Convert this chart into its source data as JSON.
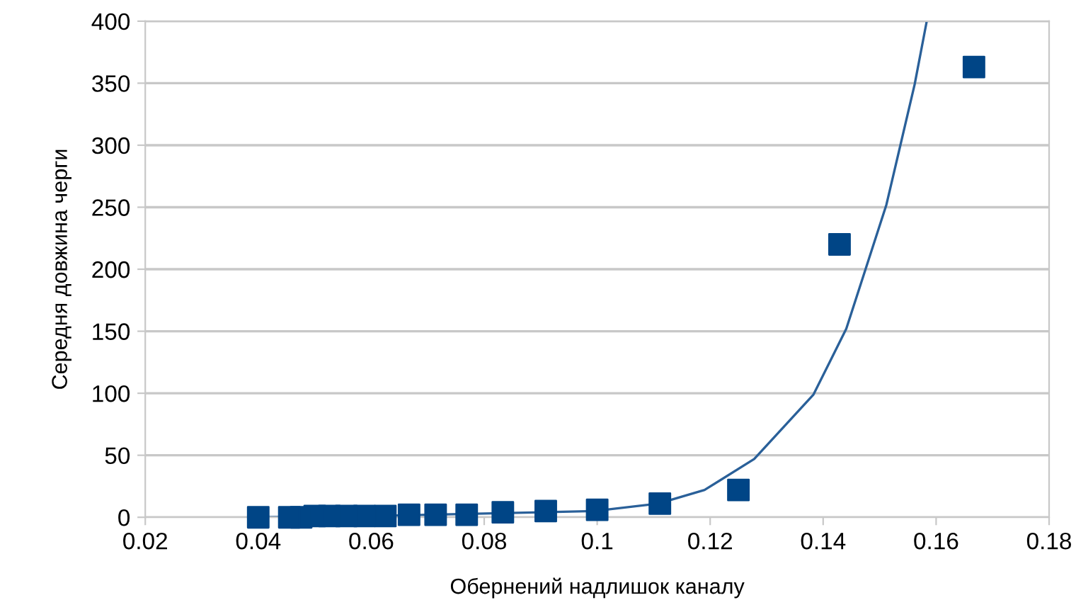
{
  "chart_data": {
    "type": "scatter",
    "xlabel": "Обернений надлишок каналу",
    "ylabel": "Середня довжина черги",
    "xlim": [
      0.02,
      0.18
    ],
    "xticks": [
      0.02,
      0.04,
      0.06,
      0.08,
      0.1,
      0.12,
      0.14,
      0.16,
      0.18
    ],
    "ylim": [
      0,
      400
    ],
    "yticks": [
      0,
      50,
      100,
      150,
      200,
      250,
      300,
      350,
      400
    ],
    "grid": "y",
    "series": [
      {
        "marker": "square",
        "color": "#004586",
        "x": [
          0.1667,
          0.1429,
          0.125,
          0.1111,
          0.1,
          0.0909,
          0.0833,
          0.0769,
          0.0714,
          0.0667,
          0.0625,
          0.0588,
          0.0556,
          0.0526,
          0.05,
          0.0476,
          0.0455,
          0.04
        ],
        "values": [
          363,
          220,
          22,
          11,
          6,
          5,
          4,
          2,
          2,
          2,
          1,
          1,
          1,
          1,
          1,
          0,
          0,
          0
        ]
      },
      {
        "type": "line",
        "marker": "none",
        "color": "#2a6099",
        "x": [
          0.04,
          0.06,
          0.08,
          0.0995,
          0.1108,
          0.119,
          0.1278,
          0.1383,
          0.1441,
          0.1512,
          0.1562,
          0.1583
        ],
        "values": [
          0,
          1,
          3,
          5,
          11,
          22,
          47,
          99,
          152,
          252,
          349,
          399
        ]
      }
    ]
  }
}
